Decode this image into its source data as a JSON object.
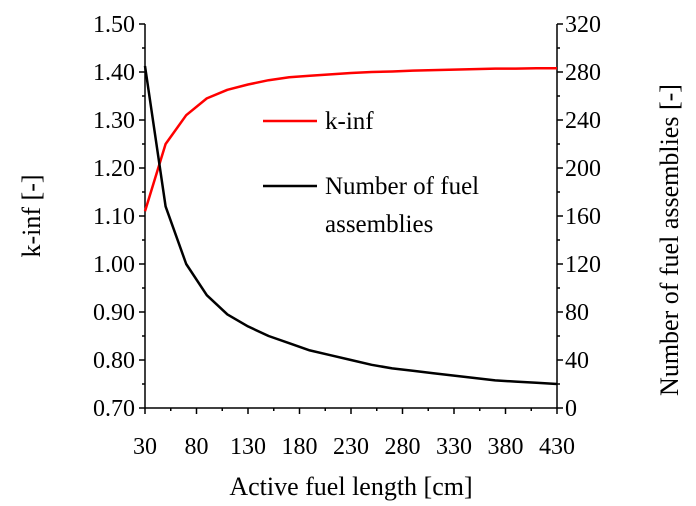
{
  "chart_data": {
    "type": "line",
    "title": "",
    "xlabel": "Active fuel length [cm]",
    "ylabel": "k-inf [-]",
    "y2label": "Number of fuel assemblies [-]",
    "xlim": [
      30,
      430
    ],
    "ylim": [
      0.7,
      1.5
    ],
    "y2lim": [
      0,
      320
    ],
    "x_ticks": [
      "30",
      "80",
      "130",
      "180",
      "230",
      "280",
      "330",
      "380",
      "430"
    ],
    "y_ticks": [
      "0.70",
      "0.80",
      "0.90",
      "1.00",
      "1.10",
      "1.20",
      "1.30",
      "1.40",
      "1.50"
    ],
    "y2_ticks": [
      "0",
      "40",
      "80",
      "120",
      "160",
      "200",
      "240",
      "280",
      "320"
    ],
    "legend_position": "center-right",
    "grid": false,
    "series": [
      {
        "name": "k-inf",
        "axis": "left",
        "color": "#ff0000",
        "x": [
          30,
          50,
          70,
          90,
          110,
          130,
          150,
          170,
          190,
          210,
          230,
          250,
          270,
          290,
          310,
          330,
          350,
          370,
          390,
          410,
          430
        ],
        "values": [
          1.11,
          1.25,
          1.31,
          1.345,
          1.363,
          1.374,
          1.383,
          1.389,
          1.392,
          1.395,
          1.398,
          1.4,
          1.401,
          1.403,
          1.404,
          1.405,
          1.406,
          1.407,
          1.407,
          1.408,
          1.408
        ]
      },
      {
        "name": "Number of fuel assemblies",
        "legend_lines": [
          "Number of fuel",
          "assemblies"
        ],
        "axis": "right",
        "color": "#000000",
        "x": [
          30,
          50,
          70,
          90,
          110,
          130,
          150,
          170,
          190,
          210,
          230,
          250,
          270,
          290,
          310,
          330,
          350,
          370,
          390,
          410,
          430
        ],
        "values": [
          285,
          168,
          120,
          94,
          78,
          68,
          60,
          54,
          48,
          44,
          40,
          36,
          33,
          31,
          29,
          27,
          25,
          23,
          22,
          21,
          20
        ]
      }
    ]
  }
}
